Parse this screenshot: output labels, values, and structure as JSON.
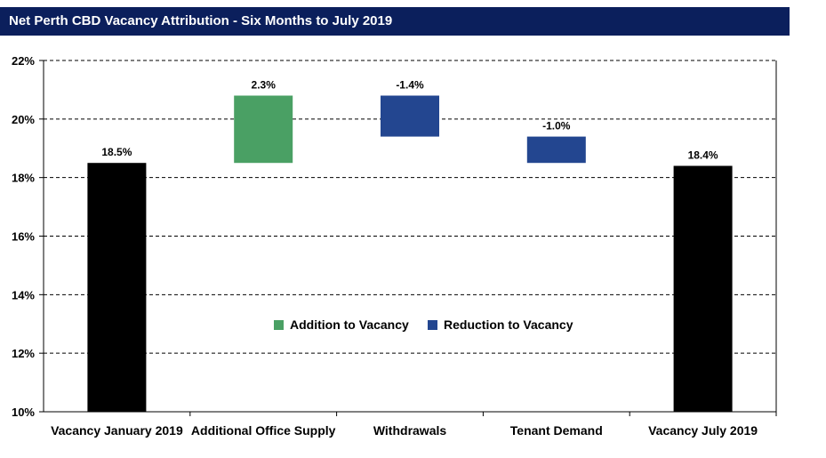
{
  "chart_data": {
    "type": "bar",
    "title": "Net Perth CBD Vacancy Attribution - Six Months to July 2019",
    "xlabel": "",
    "ylabel": "",
    "ylim": [
      10,
      22
    ],
    "yticks": [
      "10%",
      "12%",
      "14%",
      "16%",
      "18%",
      "20%",
      "22%"
    ],
    "grid": "dashed horizontal",
    "legend_position": "center",
    "categories": [
      "Vacancy January 2019",
      "Additional Office Supply",
      "Withdrawals",
      "Tenant Demand",
      "Vacancy July 2019"
    ],
    "bars": [
      {
        "category": "Vacancy January 2019",
        "from": 10,
        "to": 18.5,
        "label": "18.5%",
        "kind": "total"
      },
      {
        "category": "Additional Office Supply",
        "from": 18.5,
        "to": 20.8,
        "label": "2.3%",
        "kind": "addition"
      },
      {
        "category": "Withdrawals",
        "from": 20.8,
        "to": 19.4,
        "label": "-1.4%",
        "kind": "reduction"
      },
      {
        "category": "Tenant Demand",
        "from": 19.4,
        "to": 18.5,
        "label": "-1.0%",
        "kind": "reduction"
      },
      {
        "category": "Vacancy July 2019",
        "from": 10,
        "to": 18.4,
        "label": "18.4%",
        "kind": "total"
      }
    ],
    "legend": [
      {
        "name": "Addition to Vacancy",
        "color": "#4aa064"
      },
      {
        "name": "Reduction to Vacancy",
        "color": "#234690"
      }
    ],
    "colors": {
      "total": "#000000",
      "addition": "#4aa064",
      "reduction": "#234690"
    }
  }
}
